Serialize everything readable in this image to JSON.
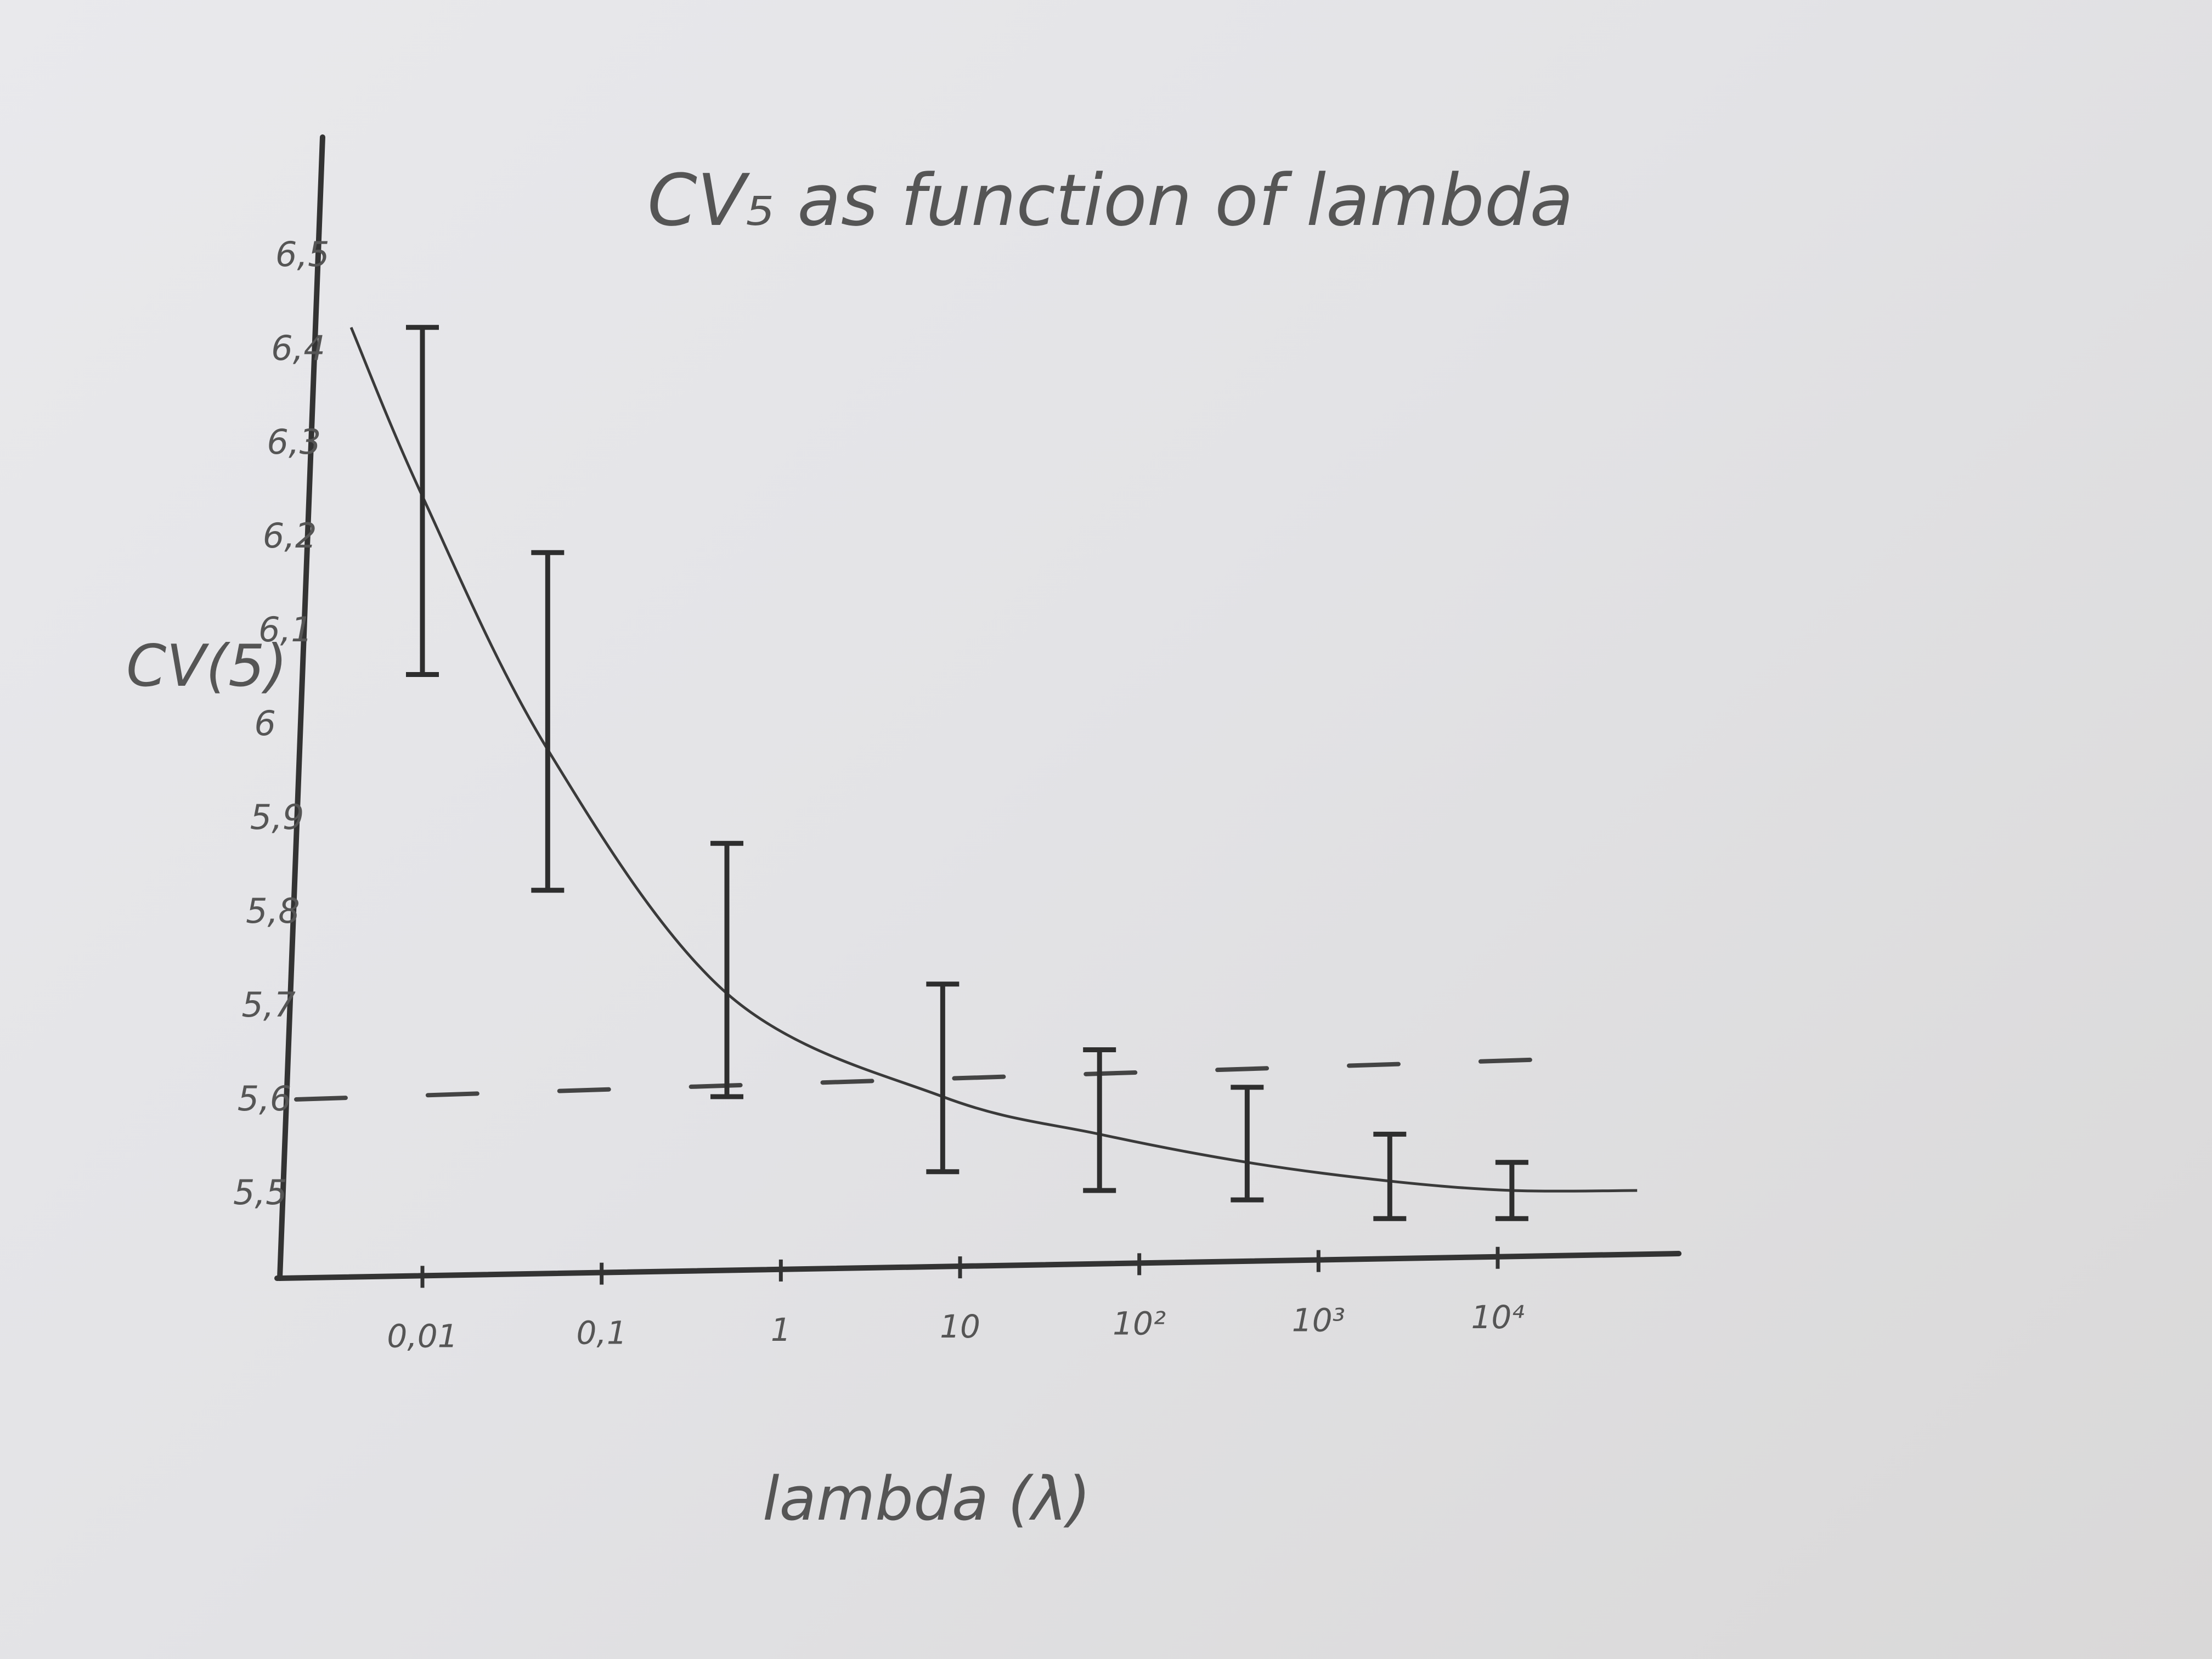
{
  "chart_data": {
    "type": "line",
    "title": "CV₅ as function of lambda",
    "xlabel": "lambda (λ)",
    "ylabel": "CV(5)",
    "x_scale": "log",
    "x_ticks": [
      {
        "value": 0.01,
        "label": "0,01"
      },
      {
        "value": 0.1,
        "label": "0,1"
      },
      {
        "value": 1,
        "label": "1"
      },
      {
        "value": 10,
        "label": "10"
      },
      {
        "value": 100,
        "label": "10²"
      },
      {
        "value": 1000,
        "label": "10³"
      },
      {
        "value": 10000,
        "label": "10⁴"
      }
    ],
    "y_ticks": [
      {
        "value": 5.5,
        "label": "5,5"
      },
      {
        "value": 5.6,
        "label": "5,6"
      },
      {
        "value": 5.7,
        "label": "5,7"
      },
      {
        "value": 5.8,
        "label": "5,8"
      },
      {
        "value": 5.9,
        "label": "5,9"
      },
      {
        "value": 6.0,
        "label": "6"
      },
      {
        "value": 6.1,
        "label": "6,1"
      },
      {
        "value": 6.2,
        "label": "6,2"
      },
      {
        "value": 6.3,
        "label": "6,3"
      },
      {
        "value": 6.4,
        "label": "6,4"
      },
      {
        "value": 6.5,
        "label": "6,5"
      }
    ],
    "ylim": [
      5.45,
      6.55
    ],
    "error_bars": [
      {
        "x": 0.01,
        "low": 6.05,
        "high": 6.42
      },
      {
        "x": 0.05,
        "low": 5.82,
        "high": 6.18
      },
      {
        "x": 0.5,
        "low": 5.6,
        "high": 5.87
      },
      {
        "x": 8,
        "low": 5.52,
        "high": 5.72
      },
      {
        "x": 60,
        "low": 5.5,
        "high": 5.65
      },
      {
        "x": 400,
        "low": 5.49,
        "high": 5.61
      },
      {
        "x": 2500,
        "low": 5.47,
        "high": 5.56
      },
      {
        "x": 12000,
        "low": 5.47,
        "high": 5.53
      }
    ],
    "curve": [
      {
        "x": 0.004,
        "y": 6.42
      },
      {
        "x": 0.01,
        "y": 6.24
      },
      {
        "x": 0.05,
        "y": 5.97
      },
      {
        "x": 0.5,
        "y": 5.71
      },
      {
        "x": 8,
        "y": 5.6
      },
      {
        "x": 60,
        "y": 5.56
      },
      {
        "x": 400,
        "y": 5.53
      },
      {
        "x": 2500,
        "y": 5.51
      },
      {
        "x": 12000,
        "y": 5.5
      },
      {
        "x": 60000,
        "y": 5.5
      }
    ],
    "reference_line": {
      "y": 5.6,
      "style": "dashed"
    },
    "grid": false
  }
}
